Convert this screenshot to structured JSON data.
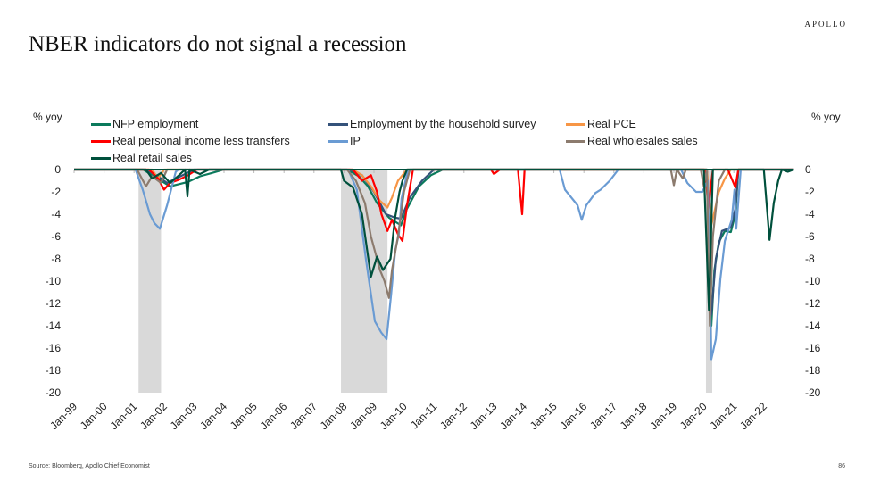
{
  "header": {
    "title": "NBER indicators do not signal a recession",
    "logo": "APOLLO"
  },
  "footer": {
    "source": "Source: Bloomberg, Apollo Chief Economist",
    "page_number": "86"
  },
  "chart_data": {
    "type": "line",
    "title": "NBER indicators do not signal a recession",
    "ylabel_left": "% yoy",
    "ylabel_right": "% yoy",
    "ylim": [
      -20,
      0
    ],
    "yticks": [
      0,
      -2,
      -4,
      -6,
      -8,
      -10,
      -12,
      -14,
      -16,
      -18,
      -20
    ],
    "xlim": [
      1999,
      2023
    ],
    "xticks": [
      "Jan-99",
      "Jan-00",
      "Jan-01",
      "Jan-02",
      "Jan-03",
      "Jan-04",
      "Jan-05",
      "Jan-06",
      "Jan-07",
      "Jan-08",
      "Jan-09",
      "Jan-10",
      "Jan-11",
      "Jan-12",
      "Jan-13",
      "Jan-14",
      "Jan-15",
      "Jan-16",
      "Jan-17",
      "Jan-18",
      "Jan-19",
      "Jan-20",
      "Jan-21",
      "Jan-22"
    ],
    "recessions": [
      [
        2001.15,
        2001.9
      ],
      [
        2007.9,
        2009.45
      ],
      [
        2020.07,
        2020.28
      ]
    ],
    "grid": false,
    "legend_position": "top",
    "series": [
      {
        "name": "NFP employment",
        "color": "#0b7a5c",
        "points": [
          [
            1999,
            0
          ],
          [
            2001.3,
            0
          ],
          [
            2001.6,
            -0.5
          ],
          [
            2001.9,
            -1
          ],
          [
            2002.2,
            -1.5
          ],
          [
            2002.5,
            -1.3
          ],
          [
            2002.8,
            -1.1
          ],
          [
            2003.2,
            -0.6
          ],
          [
            2003.6,
            -0.3
          ],
          [
            2004,
            0
          ],
          [
            2008.1,
            0
          ],
          [
            2008.5,
            -0.6
          ],
          [
            2008.8,
            -1.5
          ],
          [
            2009.1,
            -3
          ],
          [
            2009.5,
            -4.3
          ],
          [
            2009.9,
            -5
          ],
          [
            2010.1,
            -3.5
          ],
          [
            2010.5,
            -1.5
          ],
          [
            2010.9,
            -0.5
          ],
          [
            2011.3,
            0
          ],
          [
            2020.1,
            0
          ],
          [
            2020.25,
            -14
          ],
          [
            2020.35,
            -9
          ],
          [
            2020.5,
            -6.5
          ],
          [
            2020.7,
            -5.5
          ],
          [
            2020.9,
            -5.6
          ],
          [
            2021.05,
            -4
          ],
          [
            2021.15,
            0
          ],
          [
            2023,
            0
          ]
        ]
      },
      {
        "name": "Employment by the household survey",
        "color": "#34527a",
        "points": [
          [
            1999,
            0
          ],
          [
            2001.4,
            0
          ],
          [
            2001.8,
            -0.6
          ],
          [
            2002.1,
            -1.2
          ],
          [
            2002.4,
            -0.8
          ],
          [
            2002.7,
            -0.4
          ],
          [
            2003,
            0
          ],
          [
            2008.2,
            0
          ],
          [
            2008.6,
            -0.5
          ],
          [
            2009,
            -2
          ],
          [
            2009.4,
            -4
          ],
          [
            2009.7,
            -4.3
          ],
          [
            2009.9,
            -4.4
          ],
          [
            2010.2,
            -2.5
          ],
          [
            2010.6,
            -1
          ],
          [
            2011,
            0
          ],
          [
            2020.1,
            0
          ],
          [
            2020.25,
            -13
          ],
          [
            2020.4,
            -8
          ],
          [
            2020.6,
            -5.5
          ],
          [
            2020.9,
            -5.2
          ],
          [
            2021.05,
            -3.5
          ],
          [
            2021.15,
            0
          ],
          [
            2023,
            0
          ]
        ]
      },
      {
        "name": "Real PCE",
        "color": "#f79646",
        "points": [
          [
            1999,
            0
          ],
          [
            2001.6,
            0
          ],
          [
            2001.8,
            -0.8
          ],
          [
            2002,
            0
          ],
          [
            2008.3,
            0
          ],
          [
            2008.6,
            -0.5
          ],
          [
            2008.9,
            -1.5
          ],
          [
            2009.2,
            -2.8
          ],
          [
            2009.45,
            -3.4
          ],
          [
            2009.6,
            -2.5
          ],
          [
            2009.8,
            -1
          ],
          [
            2010.1,
            0
          ],
          [
            2020.1,
            0
          ],
          [
            2020.25,
            -5
          ],
          [
            2020.5,
            -2
          ],
          [
            2020.7,
            -0.8
          ],
          [
            2020.9,
            0
          ],
          [
            2023,
            0
          ]
        ]
      },
      {
        "name": "Real personal income less transfers",
        "color": "#ff0000",
        "points": [
          [
            1999,
            0
          ],
          [
            2001.5,
            0
          ],
          [
            2001.8,
            -0.8
          ],
          [
            2002.0,
            -1.8
          ],
          [
            2002.2,
            -1.2
          ],
          [
            2002.5,
            -0.9
          ],
          [
            2002.8,
            -0.5
          ],
          [
            2003.1,
            0
          ],
          [
            2008.3,
            0
          ],
          [
            2008.6,
            -1
          ],
          [
            2008.9,
            -0.5
          ],
          [
            2009.1,
            -2
          ],
          [
            2009.25,
            -4
          ],
          [
            2009.45,
            -5.5
          ],
          [
            2009.6,
            -4.5
          ],
          [
            2009.8,
            -5.8
          ],
          [
            2009.95,
            -6.4
          ],
          [
            2010.1,
            -3.2
          ],
          [
            2010.3,
            0
          ],
          [
            2012.9,
            0
          ],
          [
            2013.0,
            -0.4
          ],
          [
            2013.2,
            0
          ],
          [
            2013.8,
            0
          ],
          [
            2013.94,
            -4
          ],
          [
            2014.02,
            0
          ],
          [
            2020.05,
            0
          ],
          [
            2020.15,
            -3.5
          ],
          [
            2020.3,
            0
          ],
          [
            2020.8,
            0
          ],
          [
            2021.05,
            -1.6
          ],
          [
            2021.15,
            0
          ],
          [
            2023,
            0
          ]
        ]
      },
      {
        "name": "IP",
        "color": "#6a9bd3",
        "points": [
          [
            1999,
            0
          ],
          [
            2001.05,
            0
          ],
          [
            2001.29,
            -1.8
          ],
          [
            2001.53,
            -4
          ],
          [
            2001.68,
            -4.8
          ],
          [
            2001.86,
            -5.3
          ],
          [
            2002.1,
            -3.2
          ],
          [
            2002.39,
            -0.2
          ],
          [
            2002.48,
            0
          ],
          [
            2008.14,
            0
          ],
          [
            2008.43,
            -1.8
          ],
          [
            2008.73,
            -8
          ],
          [
            2009.03,
            -13.6
          ],
          [
            2009.24,
            -14.6
          ],
          [
            2009.42,
            -15.2
          ],
          [
            2009.57,
            -11.2
          ],
          [
            2009.71,
            -7.2
          ],
          [
            2009.83,
            -5.8
          ],
          [
            2009.92,
            -2.6
          ],
          [
            2010.13,
            0
          ],
          [
            2015.19,
            0
          ],
          [
            2015.37,
            -1.8
          ],
          [
            2015.79,
            -3.2
          ],
          [
            2015.93,
            -4.5
          ],
          [
            2016.08,
            -3.2
          ],
          [
            2016.38,
            -2.1
          ],
          [
            2016.56,
            -1.8
          ],
          [
            2016.86,
            -1
          ],
          [
            2017.15,
            0
          ],
          [
            2019.24,
            0
          ],
          [
            2019.45,
            -1.2
          ],
          [
            2019.74,
            -2
          ],
          [
            2019.95,
            -2
          ],
          [
            2020.13,
            -1
          ],
          [
            2020.25,
            -17
          ],
          [
            2020.4,
            -15.2
          ],
          [
            2020.55,
            -9.8
          ],
          [
            2020.7,
            -6.4
          ],
          [
            2020.93,
            -4.5
          ],
          [
            2021.02,
            -1.8
          ],
          [
            2021.08,
            -5.3
          ],
          [
            2021.23,
            0
          ],
          [
            2023,
            0
          ]
        ]
      },
      {
        "name": "Real wholesales sales",
        "color": "#8c7b6e",
        "points": [
          [
            1999,
            0
          ],
          [
            2001.1,
            0
          ],
          [
            2001.4,
            -1.5
          ],
          [
            2001.6,
            -0.6
          ],
          [
            2001.9,
            -1.2
          ],
          [
            2002.1,
            0
          ],
          [
            2008.1,
            0
          ],
          [
            2008.4,
            -1
          ],
          [
            2008.7,
            -3
          ],
          [
            2008.9,
            -6
          ],
          [
            2009.0,
            -7
          ],
          [
            2009.2,
            -9
          ],
          [
            2009.35,
            -10
          ],
          [
            2009.5,
            -11.5
          ],
          [
            2009.6,
            -9
          ],
          [
            2009.8,
            -6
          ],
          [
            2010,
            -2
          ],
          [
            2010.2,
            0
          ],
          [
            2018.9,
            0
          ],
          [
            2019.0,
            -1.4
          ],
          [
            2019.1,
            0
          ],
          [
            2019.3,
            -0.8
          ],
          [
            2019.4,
            0
          ],
          [
            2019.9,
            0
          ],
          [
            2020.0,
            -1.5
          ],
          [
            2020.1,
            0
          ],
          [
            2020.2,
            -14
          ],
          [
            2020.3,
            -6
          ],
          [
            2020.5,
            -1
          ],
          [
            2020.7,
            0
          ],
          [
            2023,
            0
          ]
        ]
      },
      {
        "name": "Real retail sales",
        "color": "#00503c",
        "points": [
          [
            1999,
            0
          ],
          [
            2001.4,
            0
          ],
          [
            2001.6,
            -0.8
          ],
          [
            2001.9,
            -0.3
          ],
          [
            2002.2,
            -1.2
          ],
          [
            2002.5,
            -0.5
          ],
          [
            2002.7,
            0
          ],
          [
            2002.78,
            -2.4
          ],
          [
            2002.85,
            0
          ],
          [
            2003.2,
            -0.4
          ],
          [
            2003.5,
            0
          ],
          [
            2007.9,
            0
          ],
          [
            2008.0,
            -1
          ],
          [
            2008.3,
            -1.6
          ],
          [
            2008.6,
            -4
          ],
          [
            2008.9,
            -9.6
          ],
          [
            2009.1,
            -7.8
          ],
          [
            2009.3,
            -9
          ],
          [
            2009.55,
            -8
          ],
          [
            2009.7,
            -4.4
          ],
          [
            2009.85,
            -2
          ],
          [
            2009.95,
            -1
          ],
          [
            2010.1,
            0
          ],
          [
            2020.0,
            0
          ],
          [
            2020.17,
            -12.6
          ],
          [
            2020.3,
            0
          ],
          [
            2022.0,
            0
          ],
          [
            2022.19,
            -6.3
          ],
          [
            2022.33,
            -3
          ],
          [
            2022.48,
            -1
          ],
          [
            2022.6,
            0
          ],
          [
            2022.8,
            -0.2
          ],
          [
            2023,
            0
          ]
        ]
      }
    ]
  }
}
